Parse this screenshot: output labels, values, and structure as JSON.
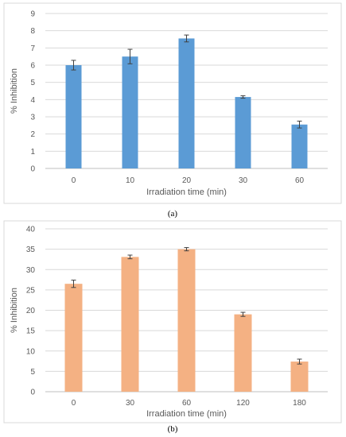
{
  "chart_data": [
    {
      "type": "bar",
      "caption": "(a)",
      "categories": [
        "0",
        "10",
        "20",
        "30",
        "60"
      ],
      "values": [
        6.0,
        6.5,
        7.55,
        4.15,
        2.55
      ],
      "errors": [
        0.28,
        0.42,
        0.2,
        0.07,
        0.2
      ],
      "xlabel": "Irradiation time (min)",
      "ylabel": "% Inhibition",
      "ylim": [
        0,
        9
      ],
      "yticks": [
        0,
        1,
        2,
        3,
        4,
        5,
        6,
        7,
        8,
        9
      ],
      "grid": true,
      "color": "#5b9bd5"
    },
    {
      "type": "bar",
      "caption": "(b)",
      "categories": [
        "0",
        "30",
        "60",
        "120",
        "180"
      ],
      "values": [
        26.5,
        33.1,
        35.0,
        19.0,
        7.4
      ],
      "errors": [
        0.9,
        0.45,
        0.4,
        0.5,
        0.6
      ],
      "xlabel": "Irradiation time (min)",
      "ylabel": "% Inhibition",
      "ylim": [
        0,
        40
      ],
      "yticks": [
        0,
        5,
        10,
        15,
        20,
        25,
        30,
        35,
        40
      ],
      "grid": true,
      "color": "#f4b183"
    }
  ]
}
